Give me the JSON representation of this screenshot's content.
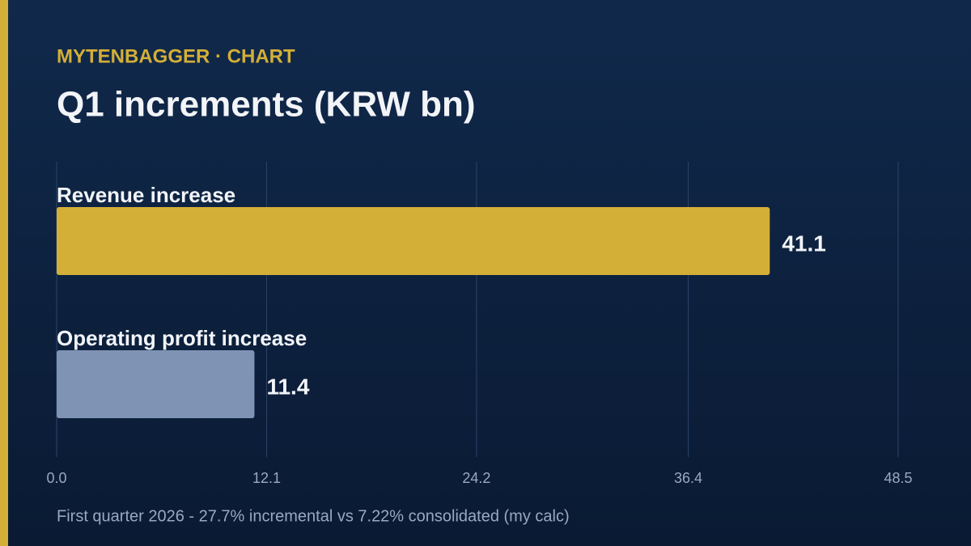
{
  "chart_data": {
    "type": "hbar",
    "kicker": "MYTENBAGGER · CHART",
    "title": "Q1 increments (KRW bn)",
    "footnote": "First quarter 2026 - 27.7% incremental vs 7.22% consolidated (my calc)",
    "categories": [
      "Revenue increase",
      "Operating profit increase"
    ],
    "values": [
      41.1,
      11.4
    ],
    "colors": [
      "#d4af37",
      "#7f93b5"
    ],
    "xlim": [
      0,
      48.5
    ],
    "xticks": [
      {
        "value": 0,
        "label": "0.0"
      },
      12.1,
      24.2,
      36.4,
      48.5
    ],
    "grid": true
  }
}
